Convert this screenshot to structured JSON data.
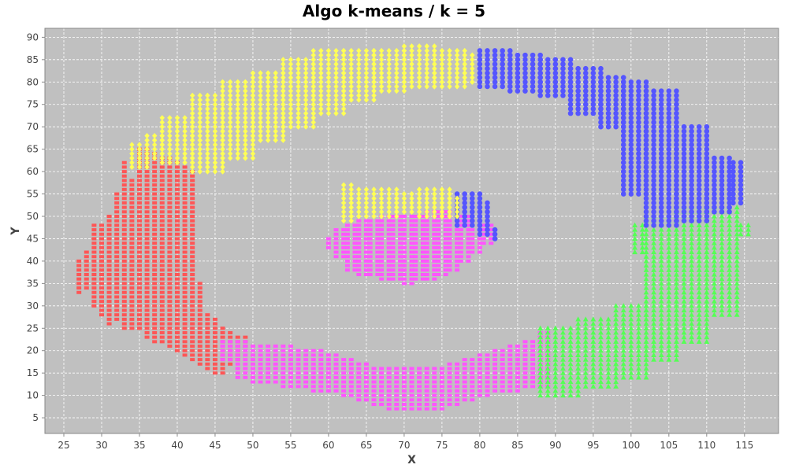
{
  "chart_data": {
    "type": "scatter",
    "title": "Algo k-means / k = 5",
    "xlabel": "X",
    "ylabel": "Y",
    "xlim": [
      22.5,
      119.5
    ],
    "ylim": [
      1.5,
      92
    ],
    "xticks": [
      25,
      30,
      35,
      40,
      45,
      50,
      55,
      60,
      65,
      70,
      75,
      80,
      85,
      90,
      95,
      100,
      105,
      110,
      115
    ],
    "yticks": [
      5,
      10,
      15,
      20,
      25,
      30,
      35,
      40,
      45,
      50,
      55,
      60,
      65,
      70,
      75,
      80,
      85,
      90
    ],
    "grid": true,
    "legend": "none",
    "colors": {
      "plot_background": "#c0c0c0",
      "grid": "#ffffff",
      "red": "#ff5555",
      "magenta": "#ff55ff",
      "green": "#55ff55",
      "blue": "#5555ff",
      "yellow": "#ffff55"
    },
    "series": [
      {
        "color": "#ff5555",
        "marker": "rect",
        "rects": [
          [
            27,
            27.7,
            33,
            40
          ],
          [
            28,
            28.7,
            34,
            42
          ],
          [
            29,
            29.7,
            30,
            48
          ],
          [
            30,
            30.7,
            28,
            48
          ],
          [
            31,
            31.7,
            26,
            50
          ],
          [
            32,
            32.7,
            27,
            55
          ],
          [
            33,
            33.7,
            25,
            62
          ],
          [
            34,
            34.7,
            25,
            58
          ],
          [
            35,
            35.7,
            25,
            65
          ],
          [
            36,
            36.7,
            23,
            65
          ],
          [
            37,
            37.7,
            22,
            64
          ],
          [
            38,
            38.7,
            22,
            63
          ],
          [
            39,
            39.7,
            21,
            63
          ],
          [
            40,
            40.7,
            20,
            62
          ],
          [
            41,
            41.7,
            19,
            61
          ],
          [
            42,
            42.7,
            18,
            60
          ],
          [
            43,
            43.7,
            17,
            35
          ],
          [
            44,
            44.7,
            16,
            28
          ],
          [
            45,
            45.7,
            15,
            27
          ],
          [
            46,
            46.7,
            15,
            25
          ],
          [
            47,
            47.7,
            17,
            24
          ],
          [
            48,
            48.7,
            18,
            23
          ],
          [
            49,
            49.7,
            21,
            23
          ]
        ]
      },
      {
        "color": "#ff55ff",
        "marker": "rect",
        "rects": [
          [
            46,
            47,
            18,
            22
          ],
          [
            48,
            49,
            14,
            22
          ],
          [
            50,
            51,
            13,
            21
          ],
          [
            52,
            53,
            13,
            21
          ],
          [
            54,
            55,
            12,
            21
          ],
          [
            56,
            57,
            12,
            20
          ],
          [
            58,
            59,
            11,
            20
          ],
          [
            60,
            61,
            11,
            19
          ],
          [
            62,
            63,
            10,
            18
          ],
          [
            64,
            65,
            9,
            17
          ],
          [
            66,
            67,
            8,
            16
          ],
          [
            68,
            69,
            7,
            16
          ],
          [
            70,
            71,
            7,
            16
          ],
          [
            72,
            73,
            7,
            16
          ],
          [
            74,
            75,
            7,
            16
          ],
          [
            76,
            77,
            8,
            17
          ],
          [
            78,
            79,
            9,
            18
          ],
          [
            80,
            81,
            10,
            19
          ],
          [
            82,
            83,
            11,
            20
          ],
          [
            84,
            85,
            11,
            21
          ],
          [
            86,
            87,
            12,
            22
          ],
          [
            88,
            89,
            12,
            24
          ],
          [
            60,
            60.8,
            43,
            45
          ],
          [
            61,
            62,
            41,
            47
          ],
          [
            62.5,
            63.5,
            38,
            48
          ],
          [
            64,
            65,
            37,
            49
          ],
          [
            65.5,
            66.5,
            37,
            49
          ],
          [
            67,
            68,
            36,
            50
          ],
          [
            68.5,
            69.5,
            36,
            50
          ],
          [
            70,
            71,
            35,
            50
          ],
          [
            71.5,
            72.5,
            36,
            50
          ],
          [
            73,
            74,
            36,
            51
          ],
          [
            74.5,
            75.5,
            37,
            51
          ],
          [
            76,
            77,
            38,
            51
          ],
          [
            77.5,
            78.5,
            40,
            50
          ],
          [
            79,
            80,
            42,
            49
          ],
          [
            80.5,
            81.5,
            44,
            48
          ]
        ]
      },
      {
        "color": "#55ff55",
        "marker": "triangle",
        "rects": [
          [
            88,
            93,
            10,
            25
          ],
          [
            93,
            98,
            12,
            27
          ],
          [
            98,
            102,
            14,
            30
          ],
          [
            102,
            106,
            18,
            50
          ],
          [
            106,
            110,
            22,
            52
          ],
          [
            110,
            114,
            28,
            52
          ],
          [
            100.5,
            101.5,
            42,
            48
          ],
          [
            114.5,
            115.5,
            46,
            48
          ]
        ]
      },
      {
        "color": "#5555ff",
        "marker": "circle",
        "rects": [
          [
            80,
            84,
            79,
            87
          ],
          [
            84,
            88,
            78,
            86
          ],
          [
            88,
            92,
            77,
            85
          ],
          [
            92,
            96,
            73,
            83
          ],
          [
            96,
            99,
            70,
            81
          ],
          [
            99,
            102,
            55,
            80
          ],
          [
            102,
            106,
            48,
            78
          ],
          [
            106,
            110,
            49,
            70
          ],
          [
            110,
            113,
            51,
            63
          ],
          [
            113.5,
            114.5,
            53,
            62
          ],
          [
            77,
            80,
            48,
            55
          ],
          [
            80,
            81.5,
            46,
            53
          ],
          [
            82,
            82.5,
            45,
            47
          ]
        ]
      },
      {
        "color": "#ffff55",
        "marker": "diamond",
        "rects": [
          [
            34,
            36,
            61,
            66
          ],
          [
            36,
            38,
            63,
            68
          ],
          [
            38,
            42,
            62,
            72
          ],
          [
            42,
            46,
            60,
            77
          ],
          [
            46,
            50,
            63,
            80
          ],
          [
            50,
            54,
            67,
            82
          ],
          [
            54,
            58,
            70,
            85
          ],
          [
            58,
            62,
            73,
            87
          ],
          [
            62,
            66,
            76,
            87
          ],
          [
            66,
            70,
            78,
            87
          ],
          [
            70,
            74,
            79,
            88
          ],
          [
            74,
            78,
            79,
            87
          ],
          [
            78,
            79.5,
            80,
            86
          ],
          [
            62,
            63,
            49,
            57
          ],
          [
            63,
            69,
            50,
            56
          ],
          [
            69,
            72,
            51,
            55
          ],
          [
            72,
            76,
            50,
            56
          ],
          [
            76,
            77,
            50,
            54
          ]
        ]
      }
    ]
  }
}
